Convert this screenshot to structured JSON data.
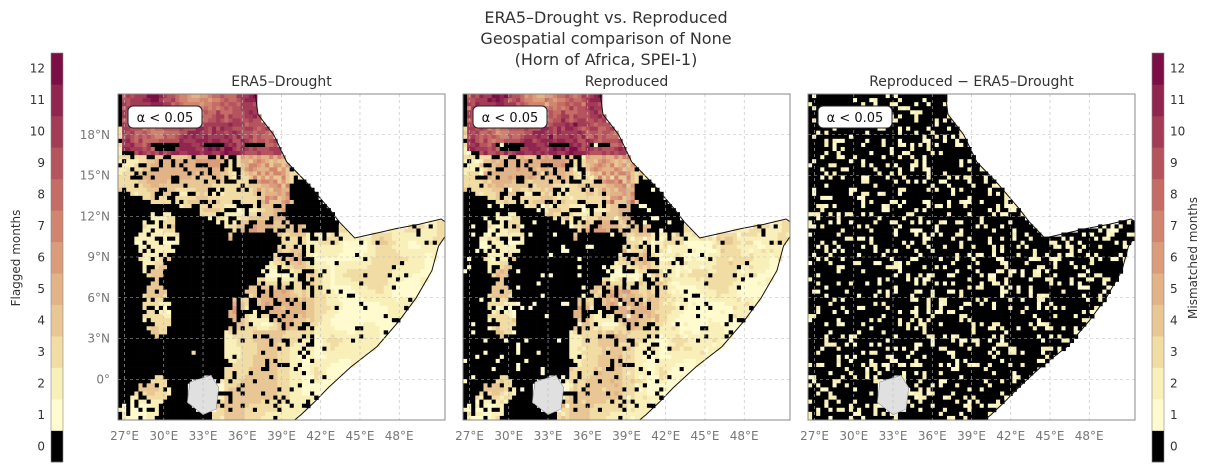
{
  "figure": {
    "title_lines": [
      "ERA5–Drought vs. Reproduced",
      "Geospatial comparison of None",
      "(Horn of Africa, SPEI-1)"
    ]
  },
  "colorbars": {
    "left_label": "Flagged months",
    "right_label": "Mismatched months",
    "ticks": [
      "0",
      "1",
      "2",
      "3",
      "4",
      "5",
      "6",
      "7",
      "8",
      "9",
      "10",
      "11",
      "12"
    ],
    "colors": [
      "#000000",
      "#fffbcf",
      "#f9efb9",
      "#f1dca4",
      "#e9c794",
      "#e2b386",
      "#da9c7a",
      "#d1856f",
      "#c56c66",
      "#b6545e",
      "#a33c56",
      "#902650",
      "#7c0e45"
    ]
  },
  "chart_data": [
    {
      "type": "heatmap",
      "title": "ERA5–Drought",
      "annotation": "α < 0.05",
      "x_ticks": [
        "27°E",
        "30°E",
        "33°E",
        "36°E",
        "39°E",
        "42°E",
        "45°E",
        "48°E"
      ],
      "y_ticks": [
        "18°N",
        "15°N",
        "12°N",
        "9°N",
        "6°N",
        "3°N",
        "0°"
      ],
      "lon_range": [
        26.5,
        51.5
      ],
      "lat_range": [
        -3.0,
        21.0
      ],
      "value_range": [
        0,
        12
      ],
      "grid": true
    },
    {
      "type": "heatmap",
      "title": "Reproduced",
      "annotation": "α < 0.05",
      "x_ticks": [
        "27°E",
        "30°E",
        "33°E",
        "36°E",
        "39°E",
        "42°E",
        "45°E",
        "48°E"
      ],
      "y_ticks": [],
      "lon_range": [
        26.5,
        51.5
      ],
      "lat_range": [
        -3.0,
        21.0
      ],
      "value_range": [
        0,
        12
      ],
      "grid": true
    },
    {
      "type": "heatmap",
      "title": "Reproduced − ERA5–Drought",
      "annotation": "α < 0.05",
      "x_ticks": [
        "27°E",
        "30°E",
        "33°E",
        "36°E",
        "39°E",
        "42°E",
        "45°E",
        "48°E"
      ],
      "y_ticks": [],
      "lon_range": [
        26.5,
        51.5
      ],
      "lat_range": [
        -3.0,
        21.0
      ],
      "value_range": [
        0,
        12
      ],
      "grid": true
    }
  ]
}
